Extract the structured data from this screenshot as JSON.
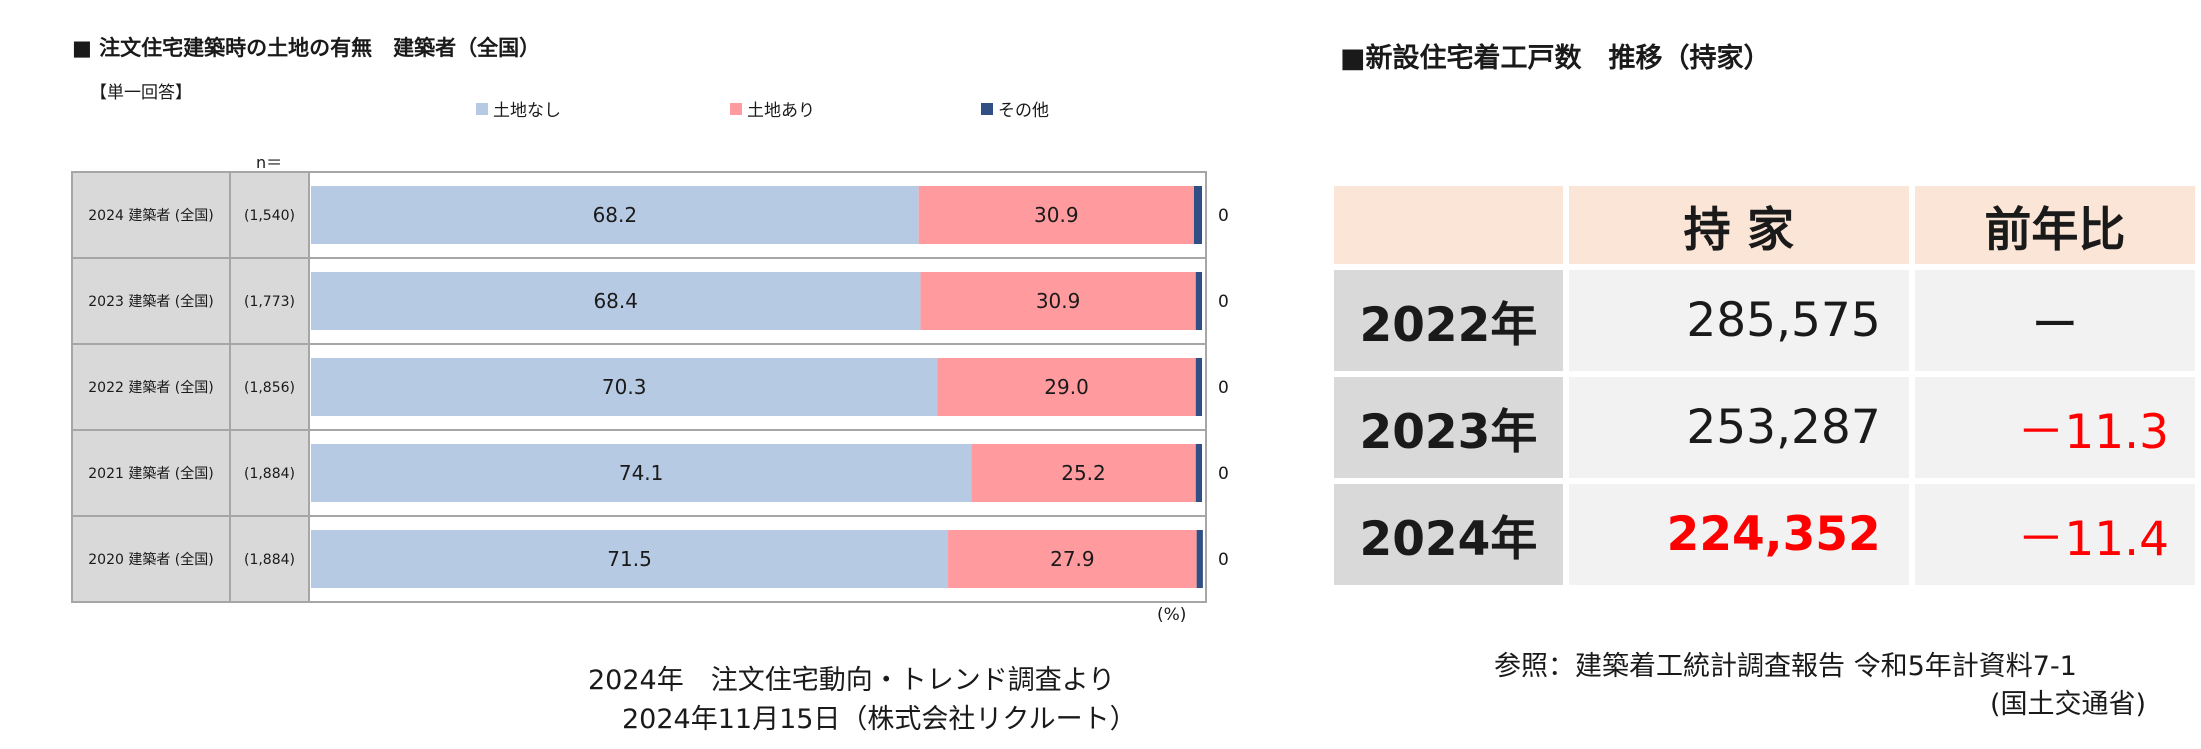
{
  "left": {
    "title": "■ 注文住宅建築時の土地の有無　建築者（全国）",
    "subtitle": "【単一回答】",
    "n_label": "n＝",
    "unit": "(%)",
    "source_line1": "2024年　注文住宅動向・トレンド調査より",
    "source_line2": "2024年11月15日（株式会社リクルート）"
  },
  "chart_data": {
    "type": "bar",
    "orientation": "horizontal",
    "stacked": "100%",
    "categories": [
      "2024 建築者 (全国)",
      "2023 建築者 (全国)",
      "2022 建築者 (全国)",
      "2021 建築者 (全国)",
      "2020 建築者 (全国)"
    ],
    "n": [
      "(1,540)",
      "(1,773)",
      "(1,856)",
      "(1,884)",
      "(1,884)"
    ],
    "series": [
      {
        "name": "土地なし",
        "color": "#b7cae3",
        "values": [
          68.2,
          68.4,
          70.3,
          74.1,
          71.5
        ]
      },
      {
        "name": "土地あり",
        "color": "#ff9a9e",
        "values": [
          30.9,
          30.9,
          29.0,
          25.2,
          27.9
        ]
      },
      {
        "name": "その他",
        "color": "#2f4f85",
        "values": [
          0.9,
          0.7,
          0.7,
          0.7,
          0.7
        ]
      }
    ],
    "xlim": [
      0,
      100
    ],
    "legend": "top"
  },
  "right": {
    "title": "■新設住宅着工戸数　推移（持家）",
    "headers": [
      "",
      "持 家",
      "前年比"
    ],
    "rows": [
      {
        "year": "2022年",
        "value": "285,575",
        "ratio": "ー"
      },
      {
        "year": "2023年",
        "value": "253,287",
        "ratio": "－11.3"
      },
      {
        "year": "2024年",
        "value": "224,352",
        "ratio": "－11.4"
      }
    ],
    "ref_line1": "参照：建築着工統計調査報告 令和5年計資料7-1",
    "ref_line2": "(国土交通省)"
  }
}
